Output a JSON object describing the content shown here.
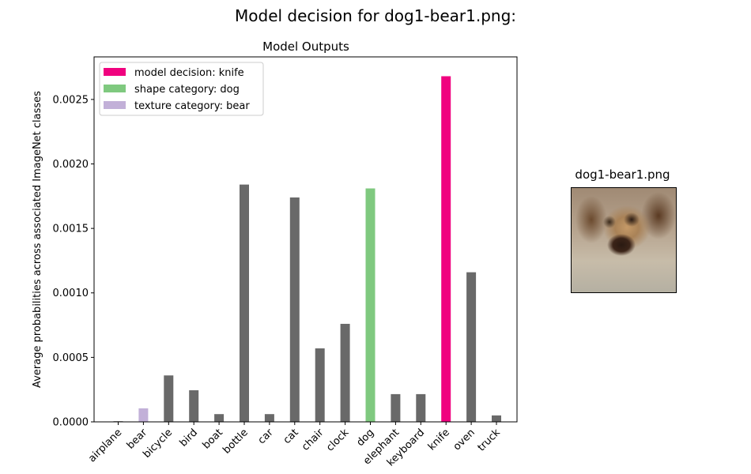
{
  "figure": {
    "suptitle": "Model decision for dog1-bear1.png:",
    "image_title": "dog1-bear1.png"
  },
  "chart_data": {
    "type": "bar",
    "title": "Model Outputs",
    "xlabel": "",
    "ylabel": "Average probabilities across associated ImageNet classes",
    "categories": [
      "airplane",
      "bear",
      "bicycle",
      "bird",
      "boat",
      "bottle",
      "car",
      "cat",
      "chair",
      "clock",
      "dog",
      "elephant",
      "keyboard",
      "knife",
      "oven",
      "truck"
    ],
    "values": [
      5e-06,
      0.000105,
      0.00036,
      0.000245,
      6e-05,
      0.00184,
      6e-05,
      0.00174,
      0.00057,
      0.00076,
      0.00181,
      0.000215,
      0.000215,
      0.00268,
      0.00116,
      5e-05
    ],
    "ylim": [
      0,
      0.00283
    ],
    "yticks": [
      0,
      0.0005,
      0.001,
      0.0015,
      0.002,
      0.0025
    ],
    "ytick_labels": [
      "0.0000",
      "0.0005",
      "0.0010",
      "0.0015",
      "0.0020",
      "0.0025"
    ],
    "bar_colors": {
      "default": "#696969",
      "bear": "#c2b0d8",
      "dog": "#7fc97f",
      "knife": "#f0027f"
    },
    "legend": {
      "placement": "upper-left",
      "entries": [
        {
          "label": "model decision: knife",
          "color": "#f0027f"
        },
        {
          "label": "shape category: dog",
          "color": "#7fc97f"
        },
        {
          "label": "texture category: bear",
          "color": "#c2b0d8"
        }
      ]
    },
    "grid": false
  }
}
